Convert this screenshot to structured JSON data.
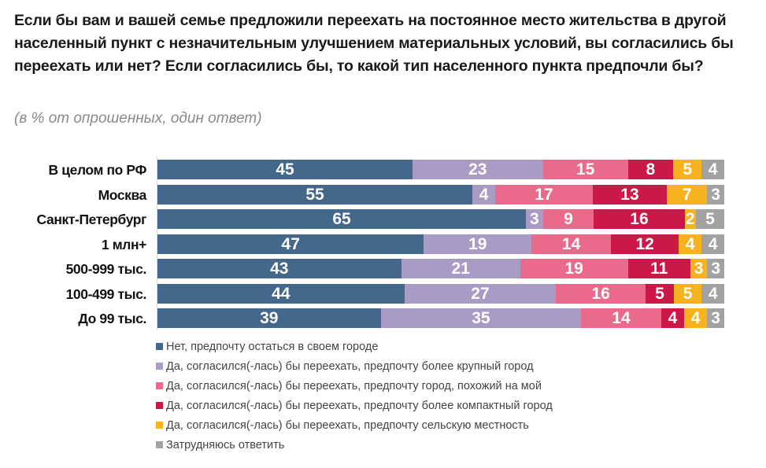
{
  "header": {
    "title": "Если бы вам и вашей семье предложили переехать на постоянное место жительства в другой населенный пункт с незначительным улучшением материальных условий, вы согласились бы переехать или нет? Если согласились бы, то какой тип населенного пункта предпочли бы?",
    "subtitle": "(в % от опрошенных, один ответ)"
  },
  "chart_data": {
    "type": "bar",
    "orientation": "horizontal",
    "stacked": true,
    "title": "Если бы вам и вашей семье предложили переехать на постоянное место жительства в другой населенный пункт с незначительным улучшением материальных условий, вы согласились бы переехать или нет? Если согласились бы, то какой тип населенного пункта предпочли бы?",
    "subtitle": "(в % от опрошенных, один ответ)",
    "xlabel": "",
    "ylabel": "",
    "xlim": [
      0,
      100
    ],
    "grid": false,
    "legend_position": "bottom",
    "categories": [
      "В целом по РФ",
      "Москва",
      "Санкт-Петербург",
      "1 млн+",
      "500-999 тыс.",
      "100-499 тыс.",
      "До 99 тыс."
    ],
    "series": [
      {
        "name": "Нет, предпочту остаться в своем городе",
        "color": "#44678c",
        "values": [
          45,
          55,
          65,
          47,
          43,
          44,
          39
        ]
      },
      {
        "name": "Да, согласился(-лась) бы переехать, предпочту более крупный город",
        "color": "#a89cc6",
        "values": [
          23,
          4,
          3,
          19,
          21,
          27,
          35
        ]
      },
      {
        "name": "Да, согласился(-лась) бы переехать, предпочту город, похожий на мой",
        "color": "#e96a8b",
        "values": [
          15,
          17,
          9,
          14,
          19,
          16,
          14
        ]
      },
      {
        "name": "Да, согласился(-лась) бы переехать, предпочту более компактный город",
        "color": "#cc1848",
        "values": [
          8,
          13,
          16,
          12,
          11,
          5,
          4
        ]
      },
      {
        "name": "Да, согласился(-лась) бы переехать, предпочту сельскую местность",
        "color": "#f7b31e",
        "values": [
          5,
          7,
          2,
          4,
          3,
          5,
          4
        ]
      },
      {
        "name": "Затрудняюсь ответить",
        "color": "#a2a2a2",
        "values": [
          4,
          3,
          5,
          4,
          3,
          4,
          3
        ]
      }
    ]
  }
}
